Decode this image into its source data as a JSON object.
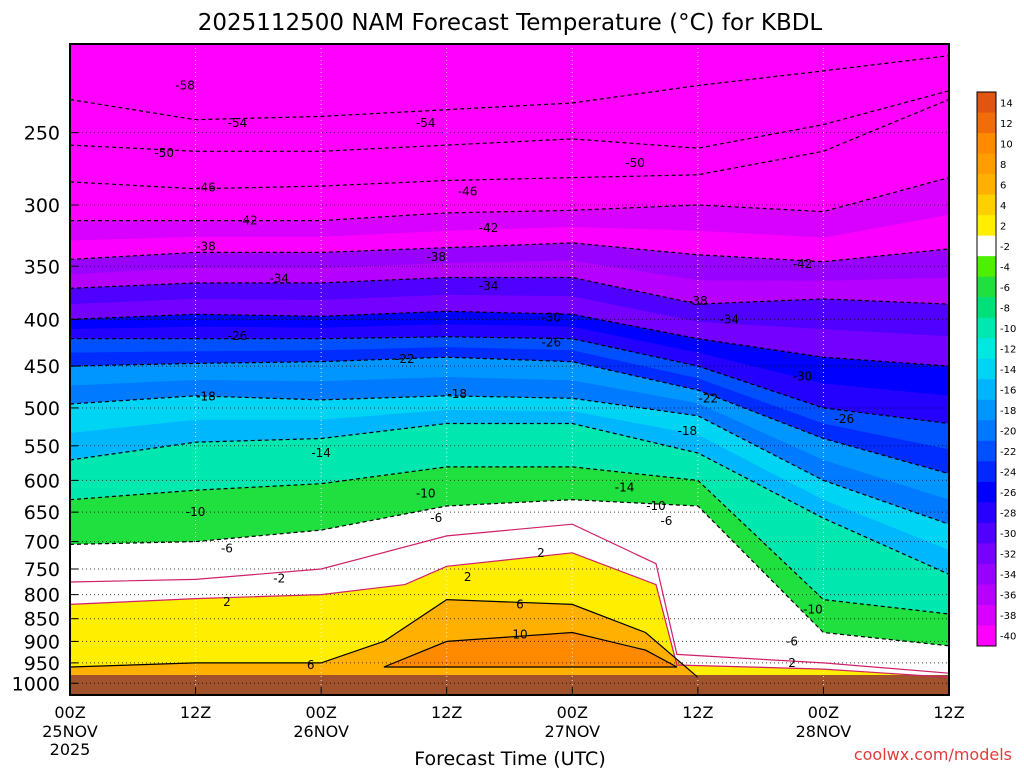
{
  "chart_data": {
    "type": "heatmap",
    "title": "2025112500 NAM Forecast Temperature (°C) for KBDL",
    "xlabel": "Forecast Time (UTC)",
    "ylabel": "",
    "watermark": "coolwx.com/models",
    "y_axis": {
      "scale": "log-pressure",
      "ylim_hPa": [
        1030,
        200
      ],
      "ticks": [
        "250",
        "300",
        "350",
        "400",
        "450",
        "500",
        "550",
        "600",
        "650",
        "700",
        "750",
        "800",
        "850",
        "900",
        "950",
        "1000"
      ]
    },
    "x_axis": {
      "xlim_hours": [
        0,
        84
      ],
      "ticks": [
        {
          "hour": 0,
          "label": "00Z",
          "date": "25NOV",
          "year": "2025"
        },
        {
          "hour": 12,
          "label": "12Z",
          "date": "",
          "year": ""
        },
        {
          "hour": 24,
          "label": "00Z",
          "date": "26NOV",
          "year": ""
        },
        {
          "hour": 36,
          "label": "12Z",
          "date": "",
          "year": ""
        },
        {
          "hour": 48,
          "label": "00Z",
          "date": "27NOV",
          "year": ""
        },
        {
          "hour": 60,
          "label": "12Z",
          "date": "",
          "year": ""
        },
        {
          "hour": 72,
          "label": "00Z",
          "date": "28NOV",
          "year": ""
        },
        {
          "hour": 84,
          "label": "12Z",
          "date": "",
          "year": ""
        }
      ]
    },
    "grid": true,
    "colorbar": {
      "placement": "right",
      "labels": [
        "14",
        "12",
        "10",
        "8",
        "6",
        "4",
        "2",
        "-2",
        "-4",
        "-6",
        "-8",
        "-10",
        "-12",
        "-14",
        "-16",
        "-18",
        "-20",
        "-22",
        "-24",
        "-26",
        "-28",
        "-30",
        "-32",
        "-34",
        "-36",
        "-38",
        "-40"
      ],
      "colors": [
        "#e05510",
        "#f26d0a",
        "#ff8a00",
        "#ff9d00",
        "#ffb000",
        "#ffd000",
        "#ffee00",
        "#ffffff",
        "#4cf000",
        "#20e040",
        "#00e07a",
        "#00e8b0",
        "#00e8e0",
        "#00d4f4",
        "#00b4ff",
        "#0096ff",
        "#0078ff",
        "#0050ff",
        "#0028ff",
        "#0000ff",
        "#2800ff",
        "#5000ff",
        "#7800ff",
        "#9800ff",
        "#b800ff",
        "#d800ff",
        "#ff00ff"
      ]
    },
    "series": [
      {
        "level": -54,
        "points": [
          [
            0,
            230
          ],
          [
            12,
            242
          ],
          [
            24,
            240
          ],
          [
            36,
            236
          ],
          [
            48,
            232
          ],
          [
            60,
            222
          ],
          [
            72,
            214
          ],
          [
            84,
            206
          ]
        ]
      },
      {
        "level": -50,
        "points": [
          [
            0,
            258
          ],
          [
            12,
            262
          ],
          [
            24,
            262
          ],
          [
            36,
            258
          ],
          [
            48,
            254
          ],
          [
            60,
            260
          ],
          [
            72,
            245
          ],
          [
            84,
            225
          ]
        ]
      },
      {
        "level": -46,
        "points": [
          [
            0,
            283
          ],
          [
            12,
            288
          ],
          [
            24,
            286
          ],
          [
            36,
            282
          ],
          [
            48,
            280
          ],
          [
            60,
            278
          ],
          [
            72,
            262
          ],
          [
            84,
            230
          ]
        ]
      },
      {
        "level": -42,
        "points": [
          [
            0,
            312
          ],
          [
            12,
            312
          ],
          [
            24,
            312
          ],
          [
            36,
            306
          ],
          [
            48,
            304
          ],
          [
            60,
            300
          ],
          [
            72,
            305
          ],
          [
            84,
            280
          ]
        ]
      },
      {
        "level": -38,
        "points": [
          [
            0,
            344
          ],
          [
            12,
            338
          ],
          [
            24,
            338
          ],
          [
            36,
            334
          ],
          [
            48,
            330
          ],
          [
            60,
            340
          ],
          [
            72,
            346
          ],
          [
            84,
            335
          ]
        ]
      },
      {
        "level": -34,
        "points": [
          [
            0,
            370
          ],
          [
            12,
            365
          ],
          [
            24,
            365
          ],
          [
            36,
            360
          ],
          [
            48,
            360
          ],
          [
            60,
            385
          ],
          [
            72,
            380
          ],
          [
            84,
            385
          ]
        ]
      },
      {
        "level": -30,
        "points": [
          [
            0,
            400
          ],
          [
            12,
            395
          ],
          [
            24,
            397
          ],
          [
            36,
            392
          ],
          [
            48,
            395
          ],
          [
            60,
            420
          ],
          [
            72,
            440
          ],
          [
            84,
            450
          ]
        ]
      },
      {
        "level": -26,
        "points": [
          [
            0,
            420
          ],
          [
            12,
            420
          ],
          [
            24,
            420
          ],
          [
            36,
            418
          ],
          [
            48,
            420
          ],
          [
            60,
            450
          ],
          [
            72,
            500
          ],
          [
            84,
            520
          ]
        ]
      },
      {
        "level": -22,
        "points": [
          [
            0,
            450
          ],
          [
            12,
            447
          ],
          [
            24,
            445
          ],
          [
            36,
            440
          ],
          [
            48,
            445
          ],
          [
            60,
            478
          ],
          [
            72,
            540
          ],
          [
            84,
            590
          ]
        ]
      },
      {
        "level": -18,
        "points": [
          [
            0,
            495
          ],
          [
            12,
            485
          ],
          [
            24,
            490
          ],
          [
            36,
            485
          ],
          [
            48,
            488
          ],
          [
            60,
            510
          ],
          [
            72,
            600
          ],
          [
            84,
            670
          ]
        ]
      },
      {
        "level": -14,
        "points": [
          [
            0,
            570
          ],
          [
            12,
            545
          ],
          [
            24,
            540
          ],
          [
            36,
            520
          ],
          [
            48,
            520
          ],
          [
            60,
            560
          ],
          [
            72,
            660
          ],
          [
            84,
            760
          ]
        ]
      },
      {
        "level": -10,
        "points": [
          [
            0,
            630
          ],
          [
            12,
            615
          ],
          [
            24,
            605
          ],
          [
            36,
            580
          ],
          [
            48,
            580
          ],
          [
            60,
            600
          ],
          [
            72,
            810
          ],
          [
            84,
            840
          ]
        ]
      },
      {
        "level": -6,
        "points": [
          [
            0,
            705
          ],
          [
            12,
            700
          ],
          [
            24,
            680
          ],
          [
            36,
            640
          ],
          [
            48,
            630
          ],
          [
            60,
            640
          ],
          [
            72,
            880
          ],
          [
            84,
            910
          ]
        ]
      },
      {
        "level": -2,
        "points": [
          [
            0,
            775
          ],
          [
            12,
            770
          ],
          [
            24,
            750
          ],
          [
            36,
            690
          ],
          [
            48,
            670
          ],
          [
            56,
            740
          ],
          [
            58,
            930
          ],
          [
            72,
            950
          ],
          [
            84,
            975
          ]
        ]
      },
      {
        "level": 2,
        "points": [
          [
            0,
            820
          ],
          [
            12,
            808
          ],
          [
            24,
            800
          ],
          [
            32,
            780
          ],
          [
            36,
            745
          ],
          [
            48,
            720
          ],
          [
            56,
            780
          ],
          [
            58,
            955
          ],
          [
            72,
            965
          ],
          [
            84,
            985
          ]
        ]
      },
      {
        "level": 6,
        "points": [
          [
            0,
            960
          ],
          [
            12,
            950
          ],
          [
            24,
            950
          ],
          [
            30,
            900
          ],
          [
            36,
            810
          ],
          [
            48,
            820
          ],
          [
            55,
            880
          ],
          [
            60,
            985
          ]
        ]
      },
      {
        "level": 10,
        "points": [
          [
            30,
            960
          ],
          [
            36,
            900
          ],
          [
            48,
            880
          ],
          [
            55,
            920
          ],
          [
            58,
            960
          ]
        ]
      }
    ],
    "annotations": [
      {
        "text": "-58",
        "x": 11,
        "y": 222
      },
      {
        "text": "-54",
        "x": 16,
        "y": 244
      },
      {
        "text": "-54",
        "x": 34,
        "y": 244
      },
      {
        "text": "-50",
        "x": 9,
        "y": 263
      },
      {
        "text": "-50",
        "x": 54,
        "y": 270
      },
      {
        "text": "-46",
        "x": 13,
        "y": 287
      },
      {
        "text": "-46",
        "x": 38,
        "y": 290
      },
      {
        "text": "-42",
        "x": 17,
        "y": 312
      },
      {
        "text": "-42",
        "x": 40,
        "y": 318
      },
      {
        "text": "-42",
        "x": 70,
        "y": 348
      },
      {
        "text": "-38",
        "x": 13,
        "y": 333
      },
      {
        "text": "-38",
        "x": 35,
        "y": 342
      },
      {
        "text": "-38",
        "x": 60,
        "y": 382
      },
      {
        "text": "-34",
        "x": 20,
        "y": 361
      },
      {
        "text": "-34",
        "x": 40,
        "y": 368
      },
      {
        "text": "-34",
        "x": 63,
        "y": 400
      },
      {
        "text": "-30",
        "x": 46,
        "y": 398
      },
      {
        "text": "-30",
        "x": 70,
        "y": 462
      },
      {
        "text": "-26",
        "x": 16,
        "y": 417
      },
      {
        "text": "-26",
        "x": 46,
        "y": 424
      },
      {
        "text": "-26",
        "x": 74,
        "y": 514
      },
      {
        "text": "-22",
        "x": 32,
        "y": 442
      },
      {
        "text": "-22",
        "x": 61,
        "y": 488
      },
      {
        "text": "-18",
        "x": 13,
        "y": 486
      },
      {
        "text": "-18",
        "x": 37,
        "y": 483
      },
      {
        "text": "-18",
        "x": 59,
        "y": 530
      },
      {
        "text": "-14",
        "x": 24,
        "y": 560
      },
      {
        "text": "-14",
        "x": 53,
        "y": 611
      },
      {
        "text": "-10",
        "x": 12,
        "y": 650
      },
      {
        "text": "-10",
        "x": 34,
        "y": 620
      },
      {
        "text": "-10",
        "x": 56,
        "y": 640
      },
      {
        "text": "-10",
        "x": 71,
        "y": 830
      },
      {
        "text": "-6",
        "x": 15,
        "y": 712
      },
      {
        "text": "-6",
        "x": 35,
        "y": 660
      },
      {
        "text": "-6",
        "x": 57,
        "y": 665
      },
      {
        "text": "-6",
        "x": 69,
        "y": 900
      },
      {
        "text": "-2",
        "x": 20,
        "y": 768
      },
      {
        "text": "2",
        "x": 15,
        "y": 815
      },
      {
        "text": "2",
        "x": 38,
        "y": 765
      },
      {
        "text": "2",
        "x": 45,
        "y": 720
      },
      {
        "text": "2",
        "x": 69,
        "y": 950
      },
      {
        "text": "6",
        "x": 23,
        "y": 955
      },
      {
        "text": "6",
        "x": 43,
        "y": 820
      },
      {
        "text": "10",
        "x": 43,
        "y": 885
      }
    ]
  }
}
